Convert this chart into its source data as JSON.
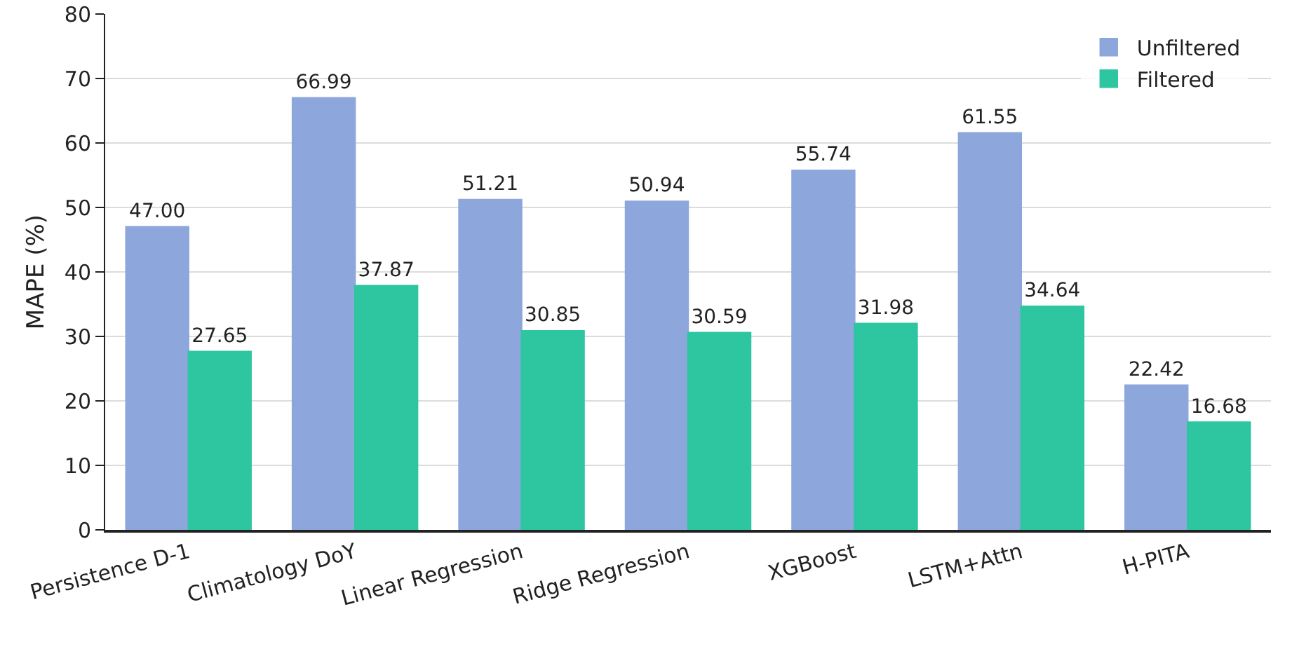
{
  "chart_data": {
    "type": "bar",
    "ylabel": "MAPE (%)",
    "categories": [
      "Persistence D-1",
      "Climatology DoY",
      "Linear Regression",
      "Ridge Regression",
      "XGBoost",
      "LSTM+Attn",
      "H-PITA"
    ],
    "series": [
      {
        "name": "Unfiltered",
        "color": "#8da6db",
        "values": [
          47.0,
          66.99,
          51.21,
          50.94,
          55.74,
          61.55,
          22.42
        ],
        "value_labels": [
          "47.00",
          "66.99",
          "51.21",
          "50.94",
          "55.74",
          "61.55",
          "22.42"
        ]
      },
      {
        "name": "Filtered",
        "color": "#2ec5a1",
        "values": [
          27.65,
          37.87,
          30.85,
          30.59,
          31.98,
          34.64,
          16.68
        ],
        "value_labels": [
          "27.65",
          "37.87",
          "30.85",
          "30.59",
          "31.98",
          "34.64",
          "16.68"
        ]
      }
    ],
    "ylim": [
      0,
      80
    ],
    "yticks": [
      0,
      10,
      20,
      30,
      40,
      50,
      60,
      70,
      80
    ],
    "grid": "y",
    "legend": "top right"
  }
}
